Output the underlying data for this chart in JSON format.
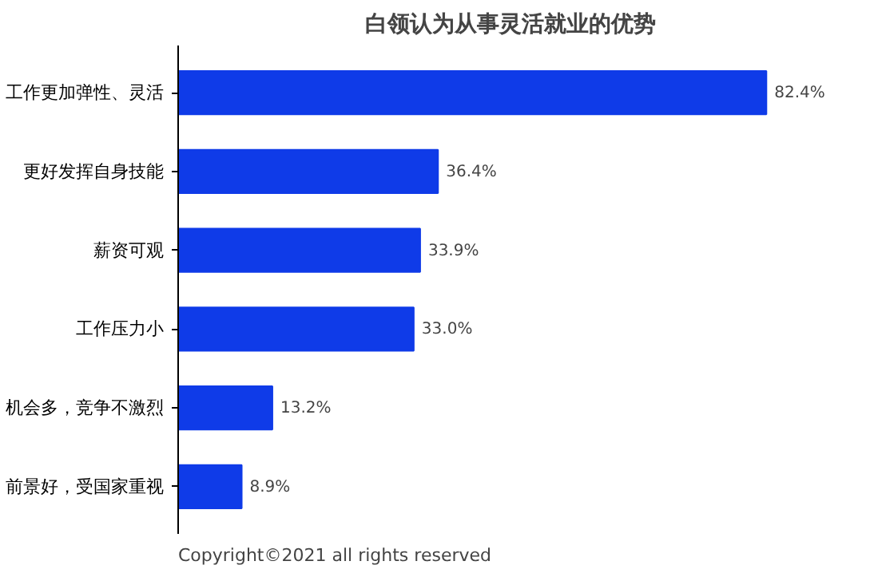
{
  "chart_data": {
    "type": "bar",
    "orientation": "horizontal",
    "title": "白领认为从事灵活就业的优势",
    "categories": [
      "工作更加弹性、灵活",
      "更好发挥自身技能",
      "薪资可观",
      "工作压力小",
      "机会多，竞争不激烈",
      "前景好，受国家重视"
    ],
    "values": [
      82.4,
      36.4,
      33.9,
      33.0,
      13.2,
      8.9
    ],
    "value_labels": [
      "82.4%",
      "36.4%",
      "33.9%",
      "33.0%",
      "13.2%",
      "8.9%"
    ],
    "color": "#0f3be8",
    "tick_labels": "y",
    "grid": false,
    "annotations": [
      "Copyright©2021 all rights reserved"
    ]
  }
}
